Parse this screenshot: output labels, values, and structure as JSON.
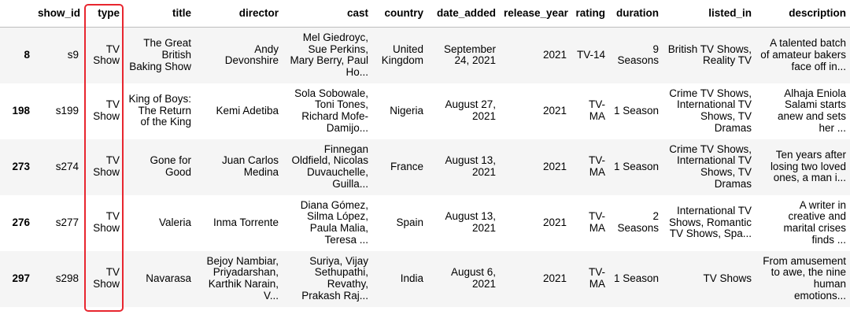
{
  "table": {
    "columns": [
      "",
      "show_id",
      "type",
      "title",
      "director",
      "cast",
      "country",
      "date_added",
      "release_year",
      "rating",
      "duration",
      "listed_in",
      "description"
    ],
    "rows": [
      [
        "8",
        "s9",
        "TV Show",
        "The Great British Baking Show",
        "Andy Devonshire",
        "Mel Giedroyc, Sue Perkins, Mary Berry, Paul Ho...",
        "United Kingdom",
        "September 24, 2021",
        "2021",
        "TV-14",
        "9 Seasons",
        "British TV Shows, Reality TV",
        "A talented batch of amateur bakers face off in..."
      ],
      [
        "198",
        "s199",
        "TV Show",
        "King of Boys: The Return of the King",
        "Kemi Adetiba",
        "Sola Sobowale, Toni Tones, Richard Mofe-Damijo...",
        "Nigeria",
        "August 27, 2021",
        "2021",
        "TV-MA",
        "1 Season",
        "Crime TV Shows, International TV Shows, TV Dramas",
        "Alhaja Eniola Salami starts anew and sets her ..."
      ],
      [
        "273",
        "s274",
        "TV Show",
        "Gone for Good",
        "Juan Carlos Medina",
        "Finnegan Oldfield, Nicolas Duvauchelle, Guilla...",
        "France",
        "August 13, 2021",
        "2021",
        "TV-MA",
        "1 Season",
        "Crime TV Shows, International TV Shows, TV Dramas",
        "Ten years after losing two loved ones, a man i..."
      ],
      [
        "276",
        "s277",
        "TV Show",
        "Valeria",
        "Inma Torrente",
        "Diana Gómez, Silma López, Paula Malia, Teresa ...",
        "Spain",
        "August 13, 2021",
        "2021",
        "TV-MA",
        "2 Seasons",
        "International TV Shows, Romantic TV Shows, Spa...",
        "A writer in creative and marital crises finds ..."
      ],
      [
        "297",
        "s298",
        "TV Show",
        "Navarasa",
        "Bejoy Nambiar, Priyadarshan, Karthik Narain, V...",
        "Suriya, Vijay Sethupathi, Revathy, Prakash Raj...",
        "India",
        "August 6, 2021",
        "2021",
        "TV-MA",
        "1 Season",
        "TV Shows",
        "From amusement to awe, the nine human emotions..."
      ]
    ]
  },
  "highlight": {
    "column": "type",
    "color": "#e8262f"
  }
}
